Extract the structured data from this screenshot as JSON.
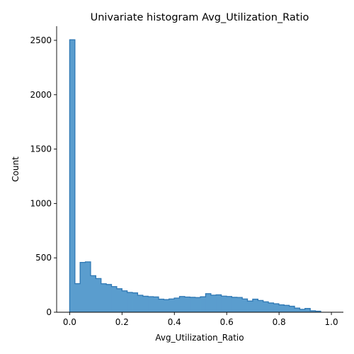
{
  "chart_data": {
    "type": "bar",
    "title": "Univariate histogram Avg_Utilization_Ratio",
    "xlabel": "Avg_Utilization_Ratio",
    "ylabel": "Count",
    "xlim": [
      -0.0498,
      1.0458
    ],
    "ylim": [
      0,
      2630
    ],
    "xticks": [
      "0.0",
      "0.2",
      "0.4",
      "0.6",
      "0.8",
      "1.0"
    ],
    "yticks": [
      "0",
      "500",
      "1000",
      "1500",
      "2000",
      "2500"
    ],
    "bin_start": 0.0,
    "bin_width": 0.01998,
    "values": [
      2505,
      263,
      458,
      463,
      336,
      310,
      262,
      255,
      236,
      216,
      197,
      182,
      178,
      156,
      147,
      143,
      141,
      120,
      116,
      122,
      130,
      145,
      140,
      137,
      135,
      142,
      171,
      157,
      160,
      148,
      145,
      137,
      136,
      122,
      103,
      120,
      108,
      96,
      85,
      78,
      68,
      63,
      55,
      38,
      27,
      35,
      14,
      10
    ],
    "color": "#5a9dce",
    "edge_color": "#2f78b4",
    "grid": false,
    "legend": "none"
  }
}
